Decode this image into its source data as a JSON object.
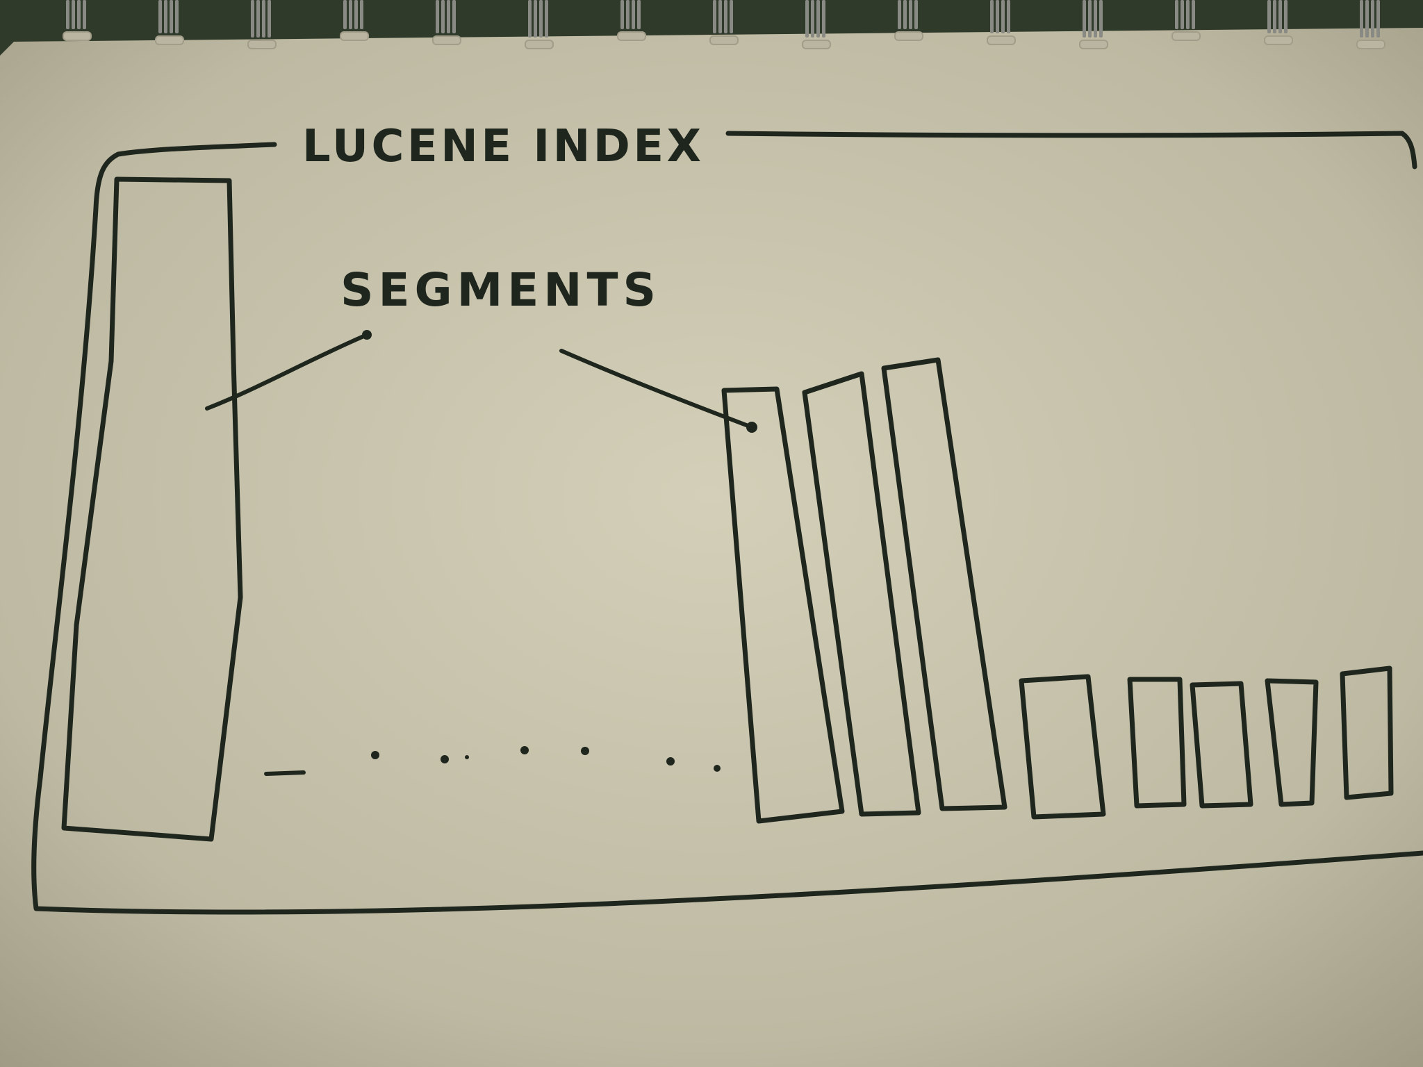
{
  "diagram": {
    "title": "LUCENE INDEX",
    "pointer_label": "SEGMENTS",
    "colors": {
      "paper": "#c9c5ae",
      "paper_edge": "#a8a48e",
      "ink": "#1f261d",
      "background": "#2f3a2a",
      "spiral": "#8a8a84"
    },
    "segments": [
      {
        "id": "large-segment",
        "size": "large"
      },
      {
        "id": "medium-segment-1",
        "size": "medium"
      },
      {
        "id": "medium-segment-2",
        "size": "medium"
      },
      {
        "id": "medium-segment-3",
        "size": "medium"
      },
      {
        "id": "small-segment-1",
        "size": "small"
      },
      {
        "id": "small-segment-2",
        "size": "small"
      },
      {
        "id": "small-segment-3",
        "size": "small"
      },
      {
        "id": "small-segment-4",
        "size": "small"
      },
      {
        "id": "small-segment-5",
        "size": "small"
      }
    ],
    "ellipsis_between_segments": true
  }
}
